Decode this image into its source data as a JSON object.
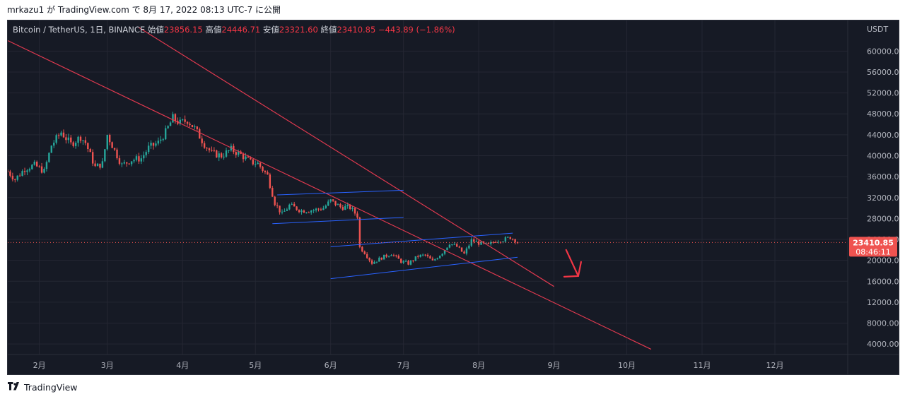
{
  "header": {
    "user": "mrkazu1",
    "text": "が TradingView.com で 8月 17, 2022 08:13 UTC-7 に公開"
  },
  "legend": {
    "symbol": "Bitcoin / TetherUS, 1日, BINANCE",
    "open_label": "始値",
    "open": "23856.15",
    "high_label": "高値",
    "high": "24446.71",
    "low_label": "安値",
    "low": "23321.60",
    "close_label": "終値",
    "close": "23410.85",
    "change": "−443.89 (−1.86%)"
  },
  "price_scale": {
    "currency": "USDT",
    "last_price": "23410.85",
    "countdown": "08:46:11"
  },
  "footer": {
    "brand": "TradingView"
  },
  "colors": {
    "background": "#161a25",
    "up": "#26a69a",
    "down": "#ef5350",
    "trendline": "#e0394f",
    "channel": "#2962ff",
    "grid": "#242733",
    "text": "#b2b5be"
  },
  "chart_data": {
    "type": "candlestick",
    "symbol": "Bitcoin / TetherUS",
    "interval": "1日",
    "exchange": "BINANCE",
    "ylim": [
      2000,
      64500
    ],
    "yticks": [
      4000,
      8000,
      12000,
      16000,
      20000,
      24000,
      28000,
      32000,
      36000,
      40000,
      44000,
      48000,
      52000,
      56000,
      60000
    ],
    "x_start": "2022-01-19",
    "x_end": "2022-12-31",
    "xticks": [
      {
        "date": "2022-02-01",
        "label": "2月"
      },
      {
        "date": "2022-03-01",
        "label": "3月"
      },
      {
        "date": "2022-04-01",
        "label": "4月"
      },
      {
        "date": "2022-05-01",
        "label": "5月"
      },
      {
        "date": "2022-06-01",
        "label": "6月"
      },
      {
        "date": "2022-07-01",
        "label": "7月"
      },
      {
        "date": "2022-08-01",
        "label": "8月"
      },
      {
        "date": "2022-09-01",
        "label": "9月"
      },
      {
        "date": "2022-10-01",
        "label": "10月"
      },
      {
        "date": "2022-11-01",
        "label": "11月"
      },
      {
        "date": "2022-12-01",
        "label": "12月"
      }
    ],
    "price_path": [
      [
        "2022-01-19",
        37000
      ],
      [
        "2022-01-22",
        35500
      ],
      [
        "2022-01-26",
        37500
      ],
      [
        "2022-01-30",
        38200
      ],
      [
        "2022-02-03",
        37000
      ],
      [
        "2022-02-06",
        42000
      ],
      [
        "2022-02-10",
        44500
      ],
      [
        "2022-02-14",
        42200
      ],
      [
        "2022-02-18",
        43600
      ],
      [
        "2022-02-20",
        42500
      ],
      [
        "2022-02-24",
        37800
      ],
      [
        "2022-02-27",
        38500
      ],
      [
        "2022-03-01",
        44000
      ],
      [
        "2022-03-04",
        41000
      ],
      [
        "2022-03-07",
        38200
      ],
      [
        "2022-03-11",
        39200
      ],
      [
        "2022-03-15",
        39500
      ],
      [
        "2022-03-18",
        41500
      ],
      [
        "2022-03-22",
        42500
      ],
      [
        "2022-03-25",
        44500
      ],
      [
        "2022-03-28",
        47200
      ],
      [
        "2022-03-31",
        46200
      ],
      [
        "2022-04-03",
        46800
      ],
      [
        "2022-04-06",
        45200
      ],
      [
        "2022-04-10",
        42200
      ],
      [
        "2022-04-13",
        40500
      ],
      [
        "2022-04-17",
        40000
      ],
      [
        "2022-04-21",
        41200
      ],
      [
        "2022-04-25",
        40200
      ],
      [
        "2022-04-29",
        38800
      ],
      [
        "2022-05-02",
        38500
      ],
      [
        "2022-05-06",
        36200
      ],
      [
        "2022-05-09",
        31000
      ],
      [
        "2022-05-12",
        28800
      ],
      [
        "2022-05-15",
        30500
      ],
      [
        "2022-05-20",
        29500
      ],
      [
        "2022-05-25",
        29600
      ],
      [
        "2022-05-29",
        30000
      ],
      [
        "2022-06-01",
        31400
      ],
      [
        "2022-06-05",
        30200
      ],
      [
        "2022-06-09",
        30100
      ],
      [
        "2022-06-12",
        28500
      ],
      [
        "2022-06-13",
        22500
      ],
      [
        "2022-06-15",
        21500
      ],
      [
        "2022-06-18",
        19500
      ],
      [
        "2022-06-22",
        20500
      ],
      [
        "2022-06-26",
        21300
      ],
      [
        "2022-06-30",
        19800
      ],
      [
        "2022-07-03",
        19400
      ],
      [
        "2022-07-07",
        20800
      ],
      [
        "2022-07-10",
        21000
      ],
      [
        "2022-07-13",
        19800
      ],
      [
        "2022-07-17",
        21500
      ],
      [
        "2022-07-20",
        23300
      ],
      [
        "2022-07-23",
        22600
      ],
      [
        "2022-07-26",
        21200
      ],
      [
        "2022-07-29",
        23800
      ],
      [
        "2022-08-01",
        23300
      ],
      [
        "2022-08-05",
        22900
      ],
      [
        "2022-08-08",
        23800
      ],
      [
        "2022-08-11",
        23900
      ],
      [
        "2022-08-14",
        24400
      ],
      [
        "2022-08-16",
        23860
      ],
      [
        "2022-08-17",
        23410
      ]
    ],
    "last_close": 23410.85,
    "trendlines": [
      {
        "type": "downtrend-long",
        "p1": [
          "2022-01-19",
          62000
        ],
        "p2": [
          "2022-10-11",
          3000
        ],
        "color": "#e0394f"
      },
      {
        "type": "downtrend-steep",
        "p1": [
          "2022-03-14",
          64500
        ],
        "p2": [
          "2022-09-01",
          15000
        ],
        "color": "#e0394f"
      }
    ],
    "channels": [
      {
        "name": "channel-1-upper",
        "p1": [
          "2022-05-10",
          32500
        ],
        "p2": [
          "2022-07-01",
          33400
        ],
        "color": "#2962ff"
      },
      {
        "name": "channel-1-lower",
        "p1": [
          "2022-05-08",
          27000
        ],
        "p2": [
          "2022-07-01",
          28200
        ],
        "color": "#2962ff"
      },
      {
        "name": "channel-2-upper",
        "p1": [
          "2022-06-01",
          22600
        ],
        "p2": [
          "2022-08-15",
          25200
        ],
        "color": "#2962ff"
      },
      {
        "name": "channel-2-lower",
        "p1": [
          "2022-06-01",
          16500
        ],
        "p2": [
          "2022-08-17",
          20600
        ],
        "color": "#2962ff"
      }
    ],
    "annotations": [
      {
        "type": "arrow-down",
        "from": [
          "2022-09-06",
          22000
        ],
        "to": [
          "2022-09-11",
          17000
        ],
        "color": "#f23645"
      }
    ]
  }
}
